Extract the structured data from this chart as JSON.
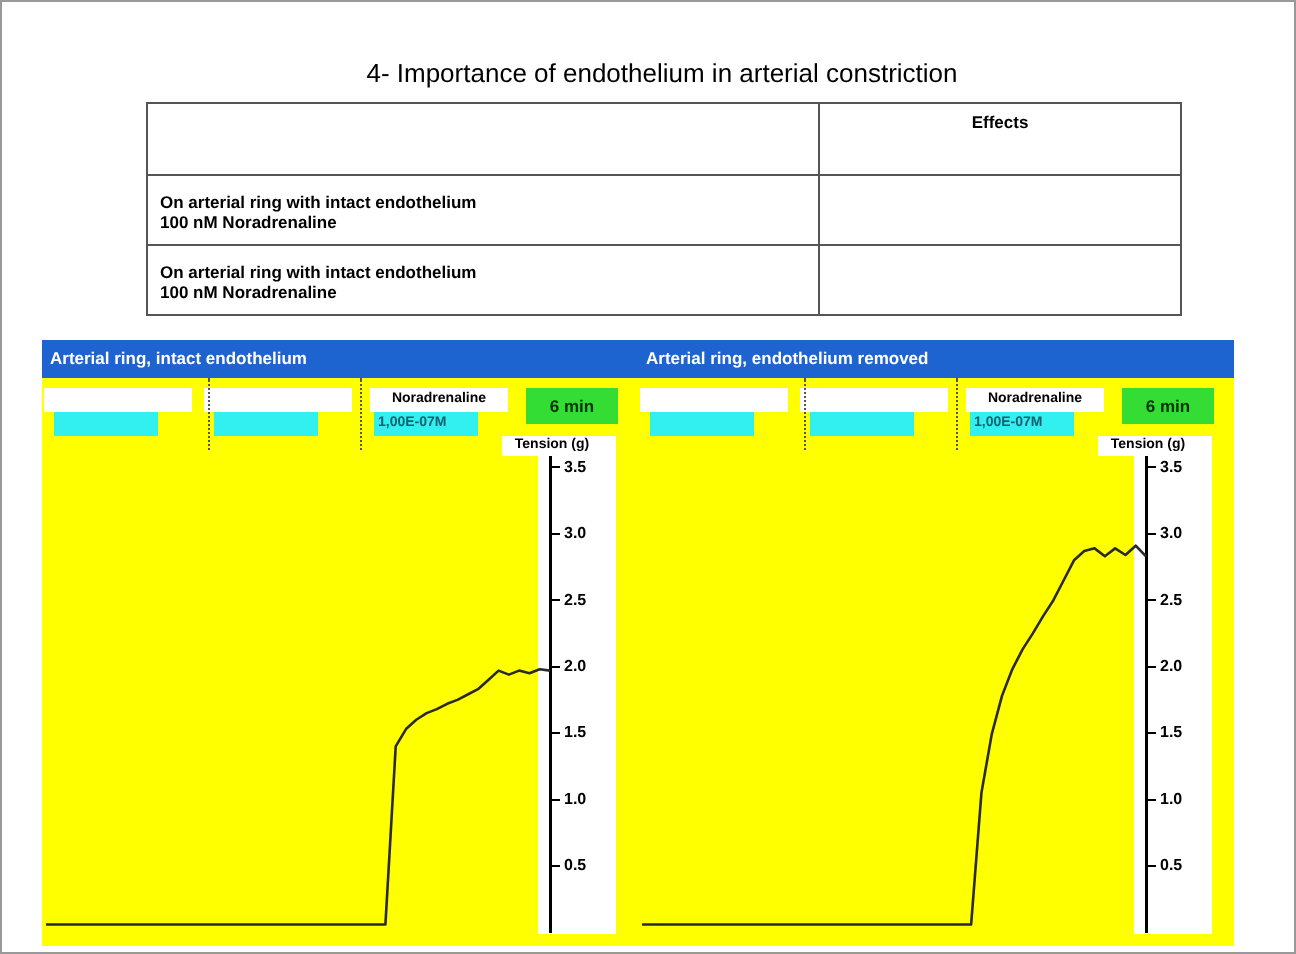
{
  "chart_data": [
    {
      "type": "other",
      "title": "4- Importance of endothelium in arterial constriction",
      "annotations": [
        "Effects"
      ],
      "categories": [
        "On arterial ring with intact endothelium\n100 nM Noradrenaline",
        "On arterial ring with intact endothelium\n100 nM Noradrenaline"
      ]
    },
    {
      "type": "line",
      "title": "Arterial ring, intact endothelium",
      "ylabel": "Tension (g)",
      "annotations": [
        "Noradrenaline",
        "1,00E-07M",
        "6 min"
      ],
      "tick_labels": "y",
      "ylim": [
        0,
        3.6
      ],
      "yticks": [
        0.5,
        {
          "value": 1,
          "label": "1.0"
        },
        1.5,
        {
          "value": 2,
          "label": "2.0"
        },
        2.5,
        {
          "value": 3,
          "label": "3.0"
        },
        3.5
      ],
      "categories": [
        null,
        null,
        null,
        null,
        null,
        null,
        null,
        null,
        null,
        null,
        null,
        null,
        null,
        null,
        null,
        null,
        null,
        null,
        null,
        null,
        null,
        null,
        null,
        null,
        null,
        null,
        null,
        null,
        null,
        null,
        null,
        null,
        null,
        null,
        null,
        null,
        null,
        null,
        null,
        null,
        null,
        null,
        null,
        null,
        null,
        null,
        null,
        null,
        null,
        null
      ],
      "series": [
        {
          "color": "#2a2a2a",
          "values": [
            0.06,
            0.06,
            0.06,
            0.06,
            0.06,
            0.06,
            0.06,
            0.06,
            0.06,
            0.06,
            0.06,
            0.06,
            0.06,
            0.06,
            0.06,
            0.06,
            0.06,
            0.06,
            0.06,
            0.06,
            0.06,
            0.06,
            0.06,
            0.06,
            0.06,
            0.06,
            0.06,
            0.06,
            0.06,
            0.06,
            0.06,
            0.06,
            0.06,
            0.06,
            1.4,
            1.53,
            1.6,
            1.65,
            1.68,
            1.72,
            1.75,
            1.79,
            1.83,
            1.9,
            1.97,
            1.94,
            1.97,
            1.95,
            1.98,
            1.97
          ]
        }
      ]
    },
    {
      "type": "line",
      "title": "Arterial ring, endothelium removed",
      "ylabel": "Tension (g)",
      "annotations": [
        "Noradrenaline",
        "1,00E-07M",
        "6 min"
      ],
      "tick_labels": "y",
      "ylim": [
        0,
        3.6
      ],
      "yticks": [
        0.5,
        {
          "value": 1,
          "label": "1.0"
        },
        1.5,
        {
          "value": 2,
          "label": "2.0"
        },
        2.5,
        {
          "value": 3,
          "label": "3.0"
        },
        3.5
      ],
      "categories": [
        null,
        null,
        null,
        null,
        null,
        null,
        null,
        null,
        null,
        null,
        null,
        null,
        null,
        null,
        null,
        null,
        null,
        null,
        null,
        null,
        null,
        null,
        null,
        null,
        null,
        null,
        null,
        null,
        null,
        null,
        null,
        null,
        null,
        null,
        null,
        null,
        null,
        null,
        null,
        null,
        null,
        null,
        null,
        null,
        null,
        null,
        null,
        null,
        null,
        null
      ],
      "series": [
        {
          "color": "#2a2a2a",
          "values": [
            0.06,
            0.06,
            0.06,
            0.06,
            0.06,
            0.06,
            0.06,
            0.06,
            0.06,
            0.06,
            0.06,
            0.06,
            0.06,
            0.06,
            0.06,
            0.06,
            0.06,
            0.06,
            0.06,
            0.06,
            0.06,
            0.06,
            0.06,
            0.06,
            0.06,
            0.06,
            0.06,
            0.06,
            0.06,
            0.06,
            0.06,
            0.06,
            0.06,
            1.05,
            1.49,
            1.78,
            1.98,
            2.13,
            2.25,
            2.38,
            2.5,
            2.65,
            2.8,
            2.87,
            2.89,
            2.83,
            2.89,
            2.84,
            2.91,
            2.83
          ]
        }
      ]
    }
  ]
}
